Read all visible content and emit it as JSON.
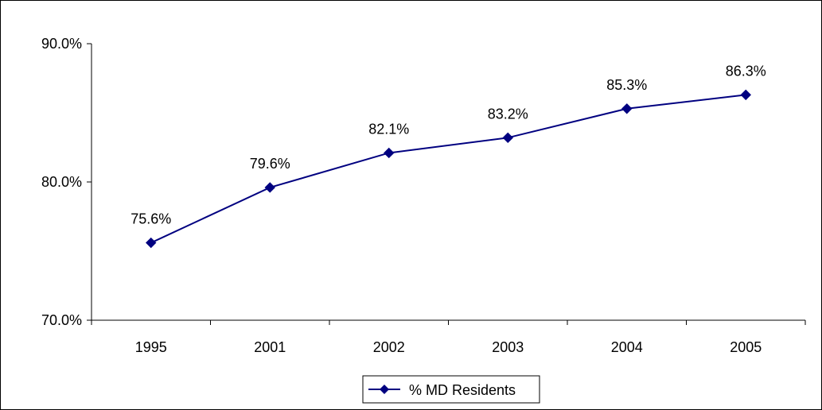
{
  "chart_data": {
    "type": "line",
    "categories": [
      "1995",
      "2001",
      "2002",
      "2003",
      "2004",
      "2005"
    ],
    "series": [
      {
        "name": "% MD Residents",
        "values": [
          75.6,
          79.6,
          82.1,
          83.2,
          85.3,
          86.3
        ],
        "data_labels": [
          "75.6%",
          "79.6%",
          "82.1%",
          "83.2%",
          "85.3%",
          "86.3%"
        ],
        "color": "#000080",
        "marker": "diamond"
      }
    ],
    "y_ticks": [
      70,
      80,
      90
    ],
    "y_tick_labels": [
      "70.0%",
      "80.0%",
      "90.0%"
    ],
    "ylim": [
      70,
      90
    ],
    "grid": false,
    "legend_position": "bottom"
  }
}
